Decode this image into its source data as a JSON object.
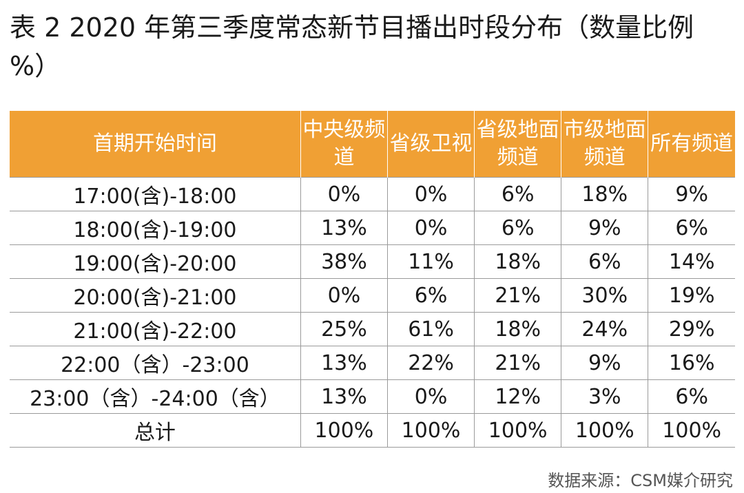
{
  "title": "表 2  2020 年第三季度常态新节目播出时段分布（数量比例 %）",
  "table": {
    "headers": [
      "首期开始时间",
      "中央级频道",
      "省级卫视",
      "省级地面频道",
      "市级地面频道",
      "所有频道"
    ],
    "rows": [
      [
        "17:00(含)-18:00",
        "0%",
        "0%",
        "6%",
        "18%",
        "9%"
      ],
      [
        "18:00(含)-19:00",
        "13%",
        "0%",
        "6%",
        "9%",
        "6%"
      ],
      [
        "19:00(含)-20:00",
        "38%",
        "11%",
        "18%",
        "6%",
        "14%"
      ],
      [
        "20:00(含)-21:00",
        "0%",
        "6%",
        "21%",
        "30%",
        "19%"
      ],
      [
        "21:00(含)-22:00",
        "25%",
        "61%",
        "18%",
        "24%",
        "29%"
      ],
      [
        "22:00（含）-23:00",
        "13%",
        "22%",
        "21%",
        "9%",
        "16%"
      ],
      [
        "23:00（含）-24:00（含）",
        "13%",
        "0%",
        "12%",
        "3%",
        "6%"
      ],
      [
        "总计",
        "100%",
        "100%",
        "100%",
        "100%",
        "100%"
      ]
    ]
  },
  "source": "数据来源：CSM媒介研究",
  "colors": {
    "header_bg": "#f0a034",
    "header_text": "#ffffff",
    "grid_line": "#9a9a9a"
  }
}
